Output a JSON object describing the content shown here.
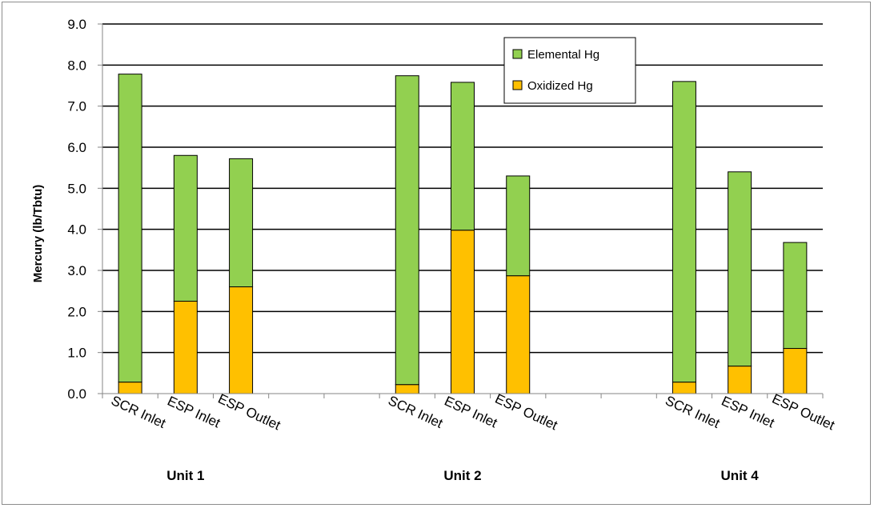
{
  "chart_data": {
    "type": "bar",
    "stacked": true,
    "title": "",
    "xlabel": "",
    "ylabel": "Mercury (lb/Tbtu)",
    "ylim": [
      0,
      9.0
    ],
    "yticks": [
      "0.0",
      "1.0",
      "2.0",
      "3.0",
      "4.0",
      "5.0",
      "6.0",
      "7.0",
      "8.0",
      "9.0"
    ],
    "grid": true,
    "legend_position": "top-center",
    "groups": [
      {
        "label": "Unit 1",
        "categories": [
          "SCR Inlet",
          "ESP Inlet",
          "ESP Outlet"
        ]
      },
      {
        "label": "Unit 2",
        "categories": [
          "SCR Inlet",
          "ESP Inlet",
          "ESP Outlet"
        ]
      },
      {
        "label": "Unit 4",
        "categories": [
          "SCR Inlet",
          "ESP Inlet",
          "ESP Outlet"
        ]
      }
    ],
    "series": [
      {
        "name": "Oxidized Hg",
        "color": "#ffc000",
        "values": [
          0.28,
          2.25,
          2.6,
          0.22,
          3.98,
          2.87,
          0.28,
          0.67,
          1.1
        ]
      },
      {
        "name": "Elemental Hg",
        "color": "#92d050",
        "values": [
          7.5,
          3.55,
          3.12,
          7.52,
          3.6,
          2.43,
          7.32,
          4.73,
          2.58
        ]
      }
    ],
    "legend_order": [
      "Elemental Hg",
      "Oxidized Hg"
    ]
  }
}
